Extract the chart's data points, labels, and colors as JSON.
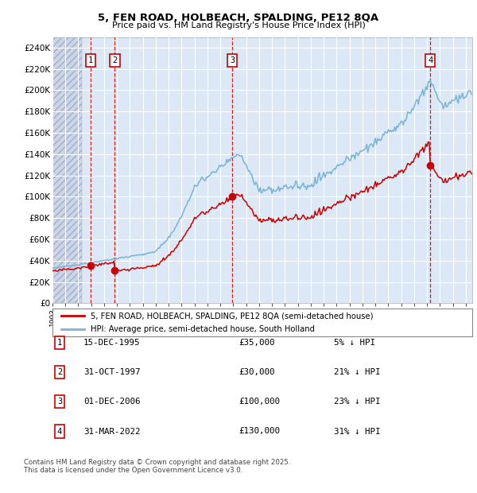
{
  "title1": "5, FEN ROAD, HOLBEACH, SPALDING, PE12 8QA",
  "title2": "Price paid vs. HM Land Registry's House Price Index (HPI)",
  "ylabel_vals": [
    "£0",
    "£20K",
    "£40K",
    "£60K",
    "£80K",
    "£100K",
    "£120K",
    "£140K",
    "£160K",
    "£180K",
    "£200K",
    "£220K",
    "£240K"
  ],
  "yticks": [
    0,
    20000,
    40000,
    60000,
    80000,
    100000,
    120000,
    140000,
    160000,
    180000,
    200000,
    220000,
    240000
  ],
  "ylim": [
    0,
    250000
  ],
  "xlim_start": 1993.0,
  "xlim_end": 2025.5,
  "hpi_color": "#7ab3d4",
  "price_color": "#cc0000",
  "bg_color": "#dce8f5",
  "hatch_color": "#c8d8e8",
  "grid_color": "#ffffff",
  "transactions": [
    {
      "num": 1,
      "date_label": "15-DEC-1995",
      "date_x": 1995.96,
      "price": 35000,
      "pct": "5%"
    },
    {
      "num": 2,
      "date_label": "31-OCT-1997",
      "date_x": 1997.83,
      "price": 30000,
      "pct": "21%"
    },
    {
      "num": 3,
      "date_label": "01-DEC-2006",
      "date_x": 2006.92,
      "price": 100000,
      "pct": "23%"
    },
    {
      "num": 4,
      "date_label": "31-MAR-2022",
      "date_x": 2022.25,
      "price": 130000,
      "pct": "31%"
    }
  ],
  "legend_line1": "5, FEN ROAD, HOLBEACH, SPALDING, PE12 8QA (semi-detached house)",
  "legend_line2": "HPI: Average price, semi-detached house, South Holland",
  "footer1": "Contains HM Land Registry data © Crown copyright and database right 2025.",
  "footer2": "This data is licensed under the Open Government Licence v3.0."
}
